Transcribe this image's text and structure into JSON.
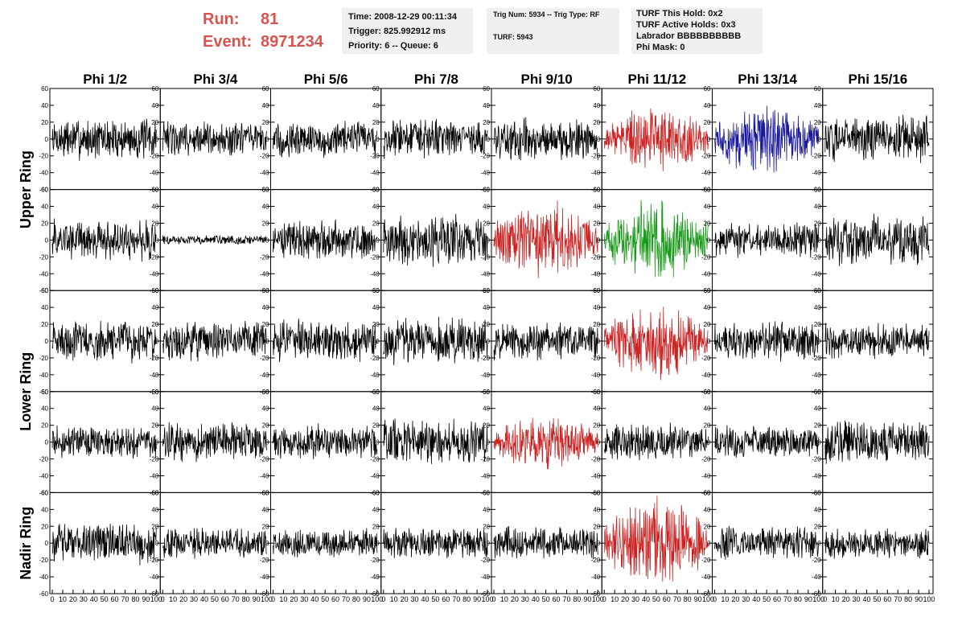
{
  "header": {
    "run_label": "Run:",
    "run_value": "81",
    "event_label": "Event:",
    "event_value": "8971234"
  },
  "info": {
    "time": "Time: 2008-12-29 00:11:34",
    "trigger": "Trigger: 825.992912 ms",
    "priority": "Priority: 6 -- Queue: 6",
    "trig_num": "Trig Num: 5934 -- Trig Type: RF",
    "turf": "TURF: 5943",
    "turf_this_hold": "TURF This Hold: 0x2",
    "turf_active_holds": "TURF Active Holds: 0x3",
    "labrador": "Labrador BBBBBBBBBB",
    "phi_mask": "Phi Mask: 0"
  },
  "chart_data": {
    "type": "line",
    "columns": [
      "Phi 1/2",
      "Phi 3/4",
      "Phi 5/6",
      "Phi 7/8",
      "Phi 9/10",
      "Phi 11/12",
      "Phi 13/14",
      "Phi 15/16"
    ],
    "rings": [
      {
        "label": "Upper Ring",
        "rows": [
          0,
          1
        ]
      },
      {
        "label": "Lower Ring",
        "rows": [
          2,
          3
        ]
      },
      {
        "label": "Nadir Ring",
        "rows": [
          4
        ]
      }
    ],
    "y_ticks": [
      -60,
      -40,
      -20,
      0,
      20,
      40,
      60
    ],
    "x_tick_labels": [
      "0",
      "10",
      "20",
      "30",
      "40",
      "50",
      "60",
      "70",
      "80",
      "90",
      "100"
    ],
    "xlim": [
      0,
      100
    ],
    "ylim": [
      -60,
      60
    ],
    "colors": {
      "black": "#000000",
      "red": "#cc2222",
      "blue": "#1a1a9c",
      "green": "#1a9a1a"
    },
    "panels": [
      [
        {
          "c": "black",
          "a": 18
        },
        {
          "c": "black",
          "a": 15
        },
        {
          "c": "black",
          "a": 16
        },
        {
          "c": "black",
          "a": 17
        },
        {
          "c": "black",
          "a": 18
        },
        {
          "c": "red",
          "a": 20
        },
        {
          "c": "blue",
          "a": 22
        },
        {
          "c": "black",
          "a": 20
        }
      ],
      [
        {
          "c": "black",
          "a": 18
        },
        {
          "c": "black",
          "a": 4
        },
        {
          "c": "black",
          "a": 17
        },
        {
          "c": "black",
          "a": 22
        },
        {
          "c": "red",
          "a": 24
        },
        {
          "c": "green",
          "a": 25
        },
        {
          "c": "black",
          "a": 15
        },
        {
          "c": "black",
          "a": 22
        }
      ],
      [
        {
          "c": "black",
          "a": 18
        },
        {
          "c": "black",
          "a": 17
        },
        {
          "c": "black",
          "a": 18
        },
        {
          "c": "black",
          "a": 20
        },
        {
          "c": "black",
          "a": 17
        },
        {
          "c": "red",
          "a": 24
        },
        {
          "c": "black",
          "a": 17
        },
        {
          "c": "black",
          "a": 15
        }
      ],
      [
        {
          "c": "black",
          "a": 14
        },
        {
          "c": "black",
          "a": 17
        },
        {
          "c": "black",
          "a": 15
        },
        {
          "c": "black",
          "a": 20
        },
        {
          "c": "red",
          "a": 17
        },
        {
          "c": "black",
          "a": 16
        },
        {
          "c": "black",
          "a": 15
        },
        {
          "c": "black",
          "a": 18
        }
      ],
      [
        {
          "c": "black",
          "a": 18
        },
        {
          "c": "black",
          "a": 13
        },
        {
          "c": "black",
          "a": 12
        },
        {
          "c": "black",
          "a": 14
        },
        {
          "c": "black",
          "a": 14
        },
        {
          "c": "red",
          "a": 28
        },
        {
          "c": "black",
          "a": 14
        },
        {
          "c": "black",
          "a": 13
        }
      ]
    ]
  }
}
